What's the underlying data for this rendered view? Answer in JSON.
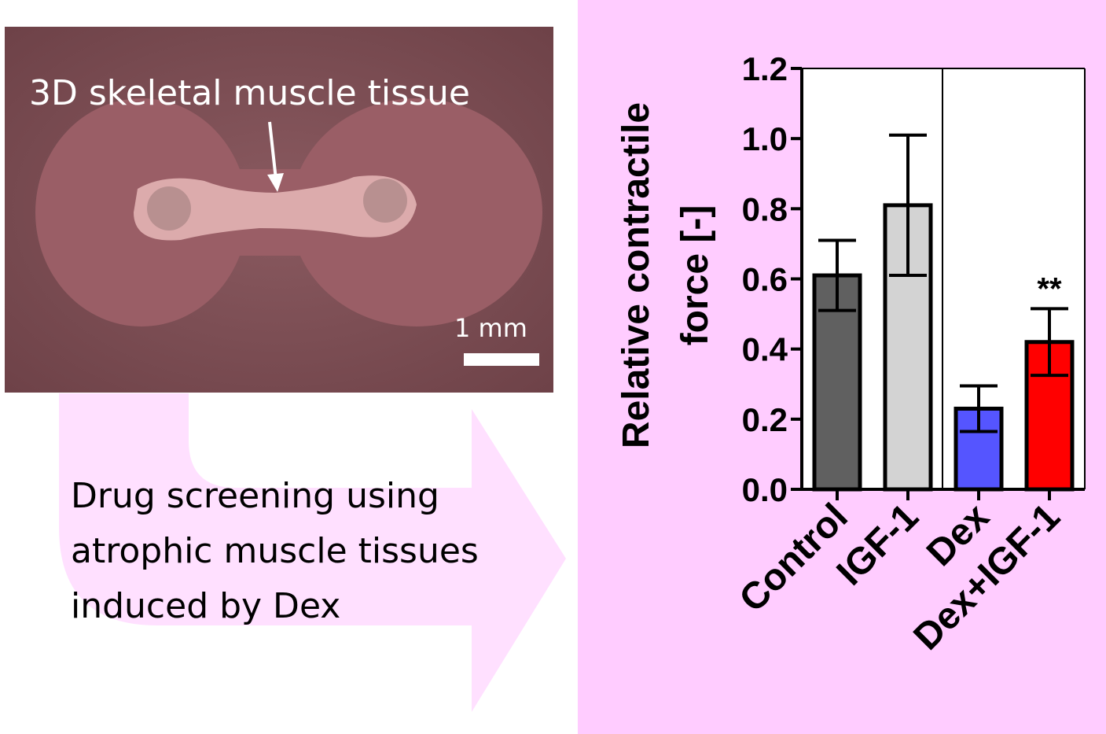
{
  "image_label": "3D skeletal muscle tissue",
  "scale_bar_label": "1 mm",
  "caption": [
    "Drug screening using",
    "atrophic muscle tissues",
    "induced by Dex"
  ],
  "chart_data": {
    "type": "bar",
    "ylabel": [
      "Relative contractile",
      "force [-]"
    ],
    "categories": [
      "Control",
      "IGF-1",
      "Dex",
      "Dex+IGF-1"
    ],
    "values": [
      0.61,
      0.81,
      0.23,
      0.42
    ],
    "errors": [
      0.1,
      0.2,
      0.065,
      0.095
    ],
    "colors": [
      "#606060",
      "#d3d3d3",
      "#5555ff",
      "#ff0000"
    ],
    "value_annotations": [
      null,
      null,
      null,
      "**"
    ],
    "ylim": [
      0,
      1.2
    ],
    "yticks": [
      {
        "value": 0,
        "label": "0.0"
      },
      0.2,
      0.4,
      0.6,
      0.8,
      {
        "value": 1,
        "label": "1.0"
      },
      1.2
    ]
  }
}
